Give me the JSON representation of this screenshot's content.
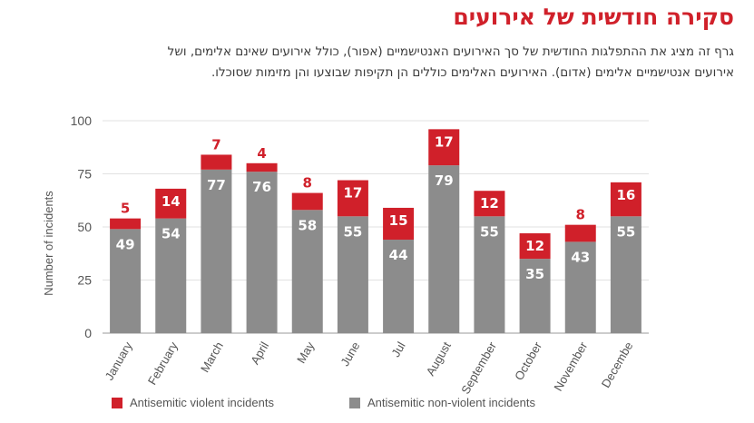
{
  "header": {
    "title": "סקירה חודשית של אירועים",
    "description_line1": "גרף זה מציג את ההתפלגות החודשית של סך האירועים האנטישמיים (אפור), כולל אירועים שאינם אלימים, ושל",
    "description_line2": "אירועים אנטישמיים אלימים (אדום). האירועים האלימים כוללים הן תקיפות שבוצעו והן מזימות שסוכלו."
  },
  "chart_data": {
    "type": "bar",
    "stacked": true,
    "categories": [
      "January",
      "February",
      "March",
      "April",
      "May",
      "June",
      "Jul",
      "August",
      "September",
      "October",
      "November",
      "Decembe"
    ],
    "series": [
      {
        "name": "Antisemitic non-violent incidents",
        "color": "#8c8c8c",
        "values": [
          49,
          54,
          77,
          76,
          58,
          55,
          44,
          79,
          55,
          35,
          43,
          55
        ]
      },
      {
        "name": "Antisemitic violent incidents",
        "color": "#d0202a",
        "values": [
          5,
          14,
          7,
          4,
          8,
          17,
          15,
          17,
          12,
          12,
          8,
          16
        ]
      }
    ],
    "ylabel": "Number of incidents",
    "yticks": [
      "0",
      "25",
      "50",
      "75",
      "100"
    ],
    "ylim": [
      0,
      100
    ],
    "grid": true
  },
  "legend": {
    "violent_label": "Antisemitic violent incidents",
    "nonviolent_label": "Antisemitic non-violent incidents",
    "violent_color": "#d0202a",
    "nonviolent_color": "#8c8c8c"
  }
}
